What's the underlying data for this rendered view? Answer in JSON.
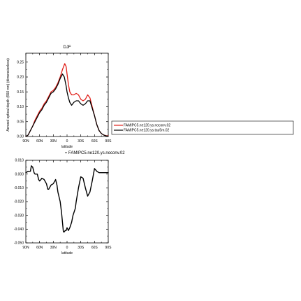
{
  "chart_data": [
    {
      "type": "line",
      "title": "DJF",
      "xlabel": "latitude",
      "ylabel": "Aerosol optical depth (550 nm) (dimensionless)",
      "xlim": [
        90,
        -90
      ],
      "ylim": [
        0.0,
        0.28
      ],
      "x_ticks": [
        90,
        60,
        30,
        0,
        -30,
        -60,
        -90
      ],
      "x_tick_labels": [
        "90N",
        "60N",
        "30N",
        "0",
        "30S",
        "60S",
        "90S"
      ],
      "y_ticks": [
        0.0,
        0.05,
        0.1,
        0.15,
        0.2,
        0.25
      ],
      "y_tick_labels": [
        "0.00",
        "0.05",
        "0.10",
        "0.15",
        "0.20",
        "0.25"
      ],
      "grid": false,
      "legend_placement": "right",
      "series": [
        {
          "name": "FAMIPC5.ne120.ys.noconv.02",
          "color": "#e0201a",
          "x": [
            90,
            85,
            80,
            75,
            70,
            65,
            60,
            55,
            50,
            45,
            40,
            35,
            30,
            25,
            20,
            15,
            10,
            5,
            2,
            0,
            -3,
            -6,
            -10,
            -15,
            -20,
            -25,
            -30,
            -35,
            -40,
            -45,
            -50,
            -55,
            -60,
            -65,
            -70,
            -75,
            -80,
            -85,
            -90
          ],
          "y": [
            0.0,
            0.005,
            0.02,
            0.035,
            0.055,
            0.07,
            0.085,
            0.095,
            0.11,
            0.12,
            0.135,
            0.15,
            0.155,
            0.165,
            0.18,
            0.2,
            0.225,
            0.245,
            0.235,
            0.21,
            0.175,
            0.15,
            0.14,
            0.14,
            0.145,
            0.14,
            0.125,
            0.12,
            0.125,
            0.14,
            0.13,
            0.1,
            0.07,
            0.04,
            0.02,
            0.01,
            0.005,
            0.003,
            0.002
          ]
        },
        {
          "name": "FAMIPC5.ne120.ys.tau5m.02",
          "color": "#000000",
          "x": [
            90,
            85,
            80,
            75,
            70,
            65,
            60,
            55,
            50,
            45,
            40,
            35,
            30,
            25,
            20,
            15,
            10,
            6,
            2,
            0,
            -3,
            -6,
            -10,
            -15,
            -20,
            -25,
            -30,
            -35,
            -40,
            -45,
            -50,
            -55,
            -60,
            -65,
            -70,
            -75,
            -80,
            -85,
            -90
          ],
          "y": [
            0.0,
            0.005,
            0.02,
            0.035,
            0.05,
            0.065,
            0.08,
            0.09,
            0.105,
            0.115,
            0.13,
            0.145,
            0.15,
            0.16,
            0.175,
            0.195,
            0.21,
            0.2,
            0.17,
            0.15,
            0.13,
            0.115,
            0.105,
            0.115,
            0.12,
            0.12,
            0.11,
            0.105,
            0.11,
            0.12,
            0.12,
            0.095,
            0.07,
            0.04,
            0.02,
            0.01,
            0.005,
            0.002,
            0.001
          ]
        }
      ]
    },
    {
      "type": "line",
      "title": "FAMIPC5.ne120.ys.noconv.02",
      "xlabel": "latitude",
      "ylabel": "",
      "xlim": [
        90,
        -90
      ],
      "ylim": [
        -0.05,
        0.01
      ],
      "x_ticks": [
        90,
        60,
        30,
        0,
        -30,
        -60,
        -90
      ],
      "x_tick_labels": [
        "90N",
        "60N",
        "30N",
        "0",
        "30S",
        "60S",
        "90S"
      ],
      "y_ticks": [
        0.01,
        0.0,
        -0.01,
        -0.02,
        -0.03,
        -0.04,
        -0.05
      ],
      "y_tick_labels": [
        "0.010",
        "0.000",
        "-0.010",
        "-0.020",
        "-0.030",
        "-0.040",
        "-0.050"
      ],
      "grid": false,
      "series": [
        {
          "color": "#000000",
          "x": [
            90,
            85,
            80,
            78,
            75,
            72,
            70,
            65,
            62,
            60,
            57,
            55,
            50,
            45,
            42,
            40,
            35,
            30,
            25,
            22,
            20,
            15,
            12,
            10,
            8,
            6,
            4,
            2,
            0,
            -3,
            -6,
            -10,
            -13,
            -15,
            -18,
            -20,
            -25,
            -30,
            -35,
            -40,
            -45,
            -50,
            -55,
            -60,
            -65,
            -70,
            -75,
            -80,
            -85,
            -90
          ],
          "y": [
            0.001,
            0.002,
            0.002,
            0.006,
            0.005,
            0.001,
            0.0,
            0.0,
            -0.004,
            -0.005,
            -0.004,
            -0.003,
            -0.004,
            -0.007,
            -0.011,
            -0.011,
            -0.008,
            -0.007,
            -0.004,
            -0.008,
            -0.013,
            -0.02,
            -0.028,
            -0.035,
            -0.042,
            -0.042,
            -0.041,
            -0.041,
            -0.039,
            -0.041,
            -0.039,
            -0.035,
            -0.03,
            -0.028,
            -0.025,
            -0.02,
            -0.01,
            -0.002,
            -0.003,
            -0.01,
            -0.016,
            -0.013,
            -0.005,
            0.004,
            0.002,
            0.001,
            0.001,
            0.001,
            0.001,
            0.001
          ]
        }
      ]
    }
  ]
}
